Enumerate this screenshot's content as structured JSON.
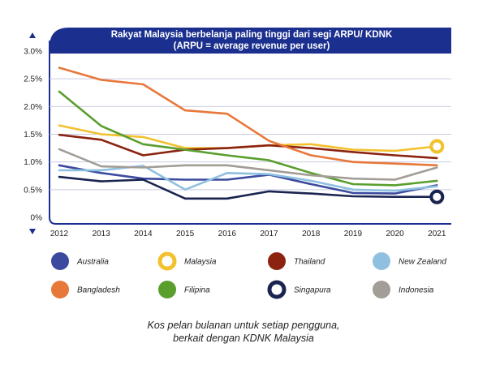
{
  "chart_data": {
    "type": "line",
    "title": "Rakyat Malaysia berbelanja paling tinggi dari segi ARPU/ KDNK",
    "subtitle": "(ARPU = average revenue per user)",
    "x": [
      "2012",
      "2013",
      "2014",
      "2015",
      "2016",
      "2017",
      "2018",
      "2019",
      "2020",
      "2021"
    ],
    "y_ticks": [
      "3.0%",
      "2.5%",
      "2.0%",
      "1.5%",
      "1.0%",
      "0.5%",
      "0%"
    ],
    "ylim": [
      0,
      3.0
    ],
    "series": [
      {
        "name": "Australia",
        "color": "#3b4a9e",
        "values": [
          0.94,
          0.8,
          0.7,
          0.68,
          0.68,
          0.77,
          0.6,
          0.44,
          0.43,
          0.58
        ]
      },
      {
        "name": "Malaysia",
        "color": "#f2c12e",
        "values": [
          1.66,
          1.5,
          1.45,
          1.25,
          1.25,
          1.3,
          1.32,
          1.22,
          1.2,
          1.28
        ]
      },
      {
        "name": "Thailand",
        "color": "#8b2310",
        "values": [
          1.49,
          1.4,
          1.12,
          1.22,
          1.25,
          1.3,
          1.25,
          1.18,
          1.12,
          1.07
        ]
      },
      {
        "name": "New Zealand",
        "color": "#8fc0e0",
        "values": [
          0.85,
          0.85,
          0.93,
          0.5,
          0.8,
          0.78,
          0.66,
          0.5,
          0.48,
          0.56
        ]
      },
      {
        "name": "Bangladesh",
        "color": "#e8773a",
        "values": [
          2.7,
          2.48,
          2.4,
          1.93,
          1.87,
          1.38,
          1.12,
          1.0,
          0.97,
          0.94
        ]
      },
      {
        "name": "Filipina",
        "color": "#5a9e2e",
        "values": [
          2.27,
          1.65,
          1.32,
          1.22,
          1.12,
          1.03,
          0.8,
          0.6,
          0.58,
          0.66
        ]
      },
      {
        "name": "Singapura",
        "color": "#1a2450",
        "values": [
          0.73,
          0.65,
          0.68,
          0.34,
          0.34,
          0.47,
          0.43,
          0.38,
          0.37,
          0.37
        ]
      },
      {
        "name": "Indonesia",
        "color": "#a29d96",
        "values": [
          1.23,
          0.92,
          0.9,
          0.94,
          0.94,
          0.85,
          0.76,
          0.7,
          0.68,
          0.9
        ]
      }
    ],
    "highlighted": [
      "Malaysia",
      "Singapura"
    ],
    "grid": true
  },
  "legend": [
    {
      "name": "Australia",
      "color": "#3b4a9e",
      "style": "filled"
    },
    {
      "name": "Malaysia",
      "color": "#f2c12e",
      "style": "ring"
    },
    {
      "name": "Thailand",
      "color": "#8b2310",
      "style": "filled"
    },
    {
      "name": "New Zealand",
      "color": "#8fc0e0",
      "style": "filled"
    },
    {
      "name": "Bangladesh",
      "color": "#e8773a",
      "style": "filled"
    },
    {
      "name": "Filipina",
      "color": "#5a9e2e",
      "style": "filled"
    },
    {
      "name": "Singapura",
      "color": "#1a2450",
      "style": "ring"
    },
    {
      "name": "Indonesia",
      "color": "#a29d96",
      "style": "filled"
    }
  ],
  "caption": [
    "Kos pelan bulanan untuk setiap pengguna,",
    "berkait dengan KDNK Malaysia"
  ],
  "colors": {
    "frame": "#1b2f8f",
    "grid": "#c9cbe3",
    "text": "#222222"
  }
}
